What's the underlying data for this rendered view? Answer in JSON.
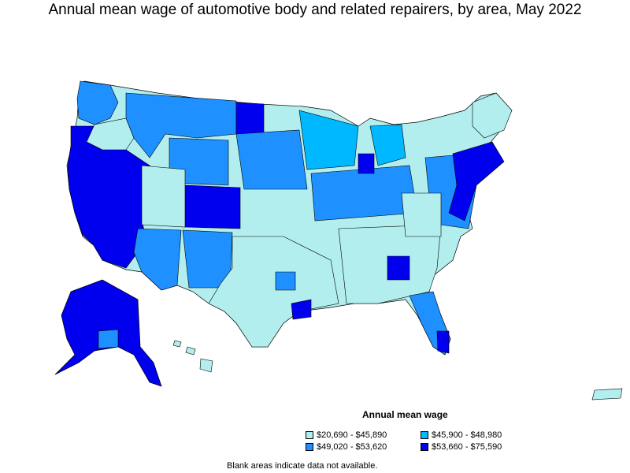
{
  "title": "Annual mean wage of automotive body and related repairers, by area, May 2022",
  "legend": {
    "title": "Annual mean wage",
    "items": [
      {
        "label": "$20,690 - $45,890",
        "color": "#b2eeee"
      },
      {
        "label": "$45,900 - $48,980",
        "color": "#00b8ff"
      },
      {
        "label": "$49,020 - $53,620",
        "color": "#1e90ff"
      },
      {
        "label": "$53,660 - $75,590",
        "color": "#0000ee"
      }
    ]
  },
  "note": "Blank areas indicate data not available."
}
